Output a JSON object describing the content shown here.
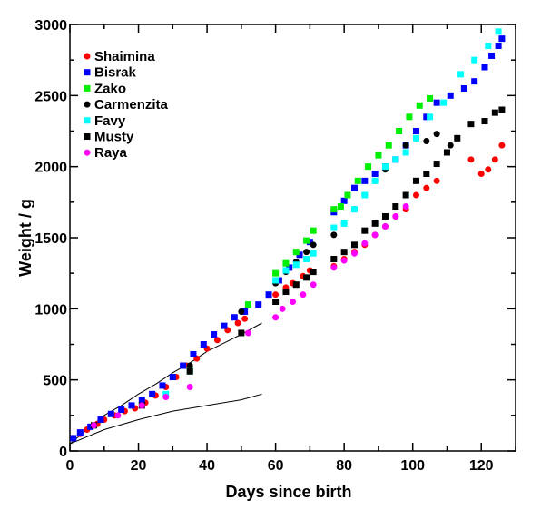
{
  "chart_data": {
    "type": "scatter",
    "xlabel": "Days since birth",
    "ylabel": "Weight / g",
    "xlim": [
      0,
      130
    ],
    "ylim": [
      0,
      3000
    ],
    "xticks": [
      0,
      20,
      40,
      60,
      80,
      100,
      120
    ],
    "yticks": [
      0,
      500,
      1000,
      1500,
      2000,
      2500,
      3000
    ],
    "grid": false,
    "legend_position": "top-left",
    "series": [
      {
        "name": "Shaimina",
        "color": "#ff0000",
        "marker": "circle",
        "x": [
          1,
          3,
          5,
          8,
          10,
          13,
          16,
          19,
          22,
          25,
          28,
          31,
          34,
          37,
          40,
          43,
          46,
          49,
          51,
          60,
          63,
          65,
          68,
          70,
          77,
          80,
          83,
          86,
          89,
          92,
          95,
          98,
          101,
          104,
          107,
          117,
          120,
          122,
          124,
          126
        ],
        "y": [
          90,
          120,
          150,
          190,
          220,
          250,
          280,
          300,
          340,
          390,
          450,
          520,
          600,
          650,
          720,
          780,
          850,
          900,
          930,
          1100,
          1150,
          1180,
          1230,
          1270,
          1300,
          1350,
          1400,
          1450,
          1520,
          1580,
          1650,
          1700,
          1800,
          1850,
          1900,
          2050,
          1950,
          1980,
          2050,
          2150
        ]
      },
      {
        "name": "Bisrak",
        "color": "#0000ff",
        "marker": "square",
        "x": [
          1,
          3,
          6,
          9,
          12,
          15,
          18,
          21,
          24,
          27,
          30,
          33,
          36,
          39,
          42,
          45,
          48,
          51,
          55,
          58,
          61,
          64,
          67,
          70,
          77,
          80,
          83,
          86,
          89,
          92,
          95,
          98,
          101,
          104,
          107,
          111,
          115,
          118,
          121,
          123,
          125,
          126
        ],
        "y": [
          90,
          130,
          170,
          220,
          260,
          290,
          320,
          360,
          400,
          460,
          520,
          600,
          680,
          750,
          820,
          880,
          940,
          980,
          1030,
          1100,
          1200,
          1290,
          1380,
          1470,
          1680,
          1760,
          1850,
          1900,
          1950,
          2000,
          2050,
          2150,
          2250,
          2350,
          2450,
          2500,
          2550,
          2600,
          2700,
          2780,
          2850,
          2900
        ]
      },
      {
        "name": "Zako",
        "color": "#00ee00",
        "marker": "square",
        "x": [
          35,
          52,
          60,
          63,
          66,
          69,
          71,
          77,
          79,
          81,
          84,
          87,
          90,
          93,
          96,
          99,
          102,
          105
        ],
        "y": [
          570,
          1030,
          1250,
          1320,
          1400,
          1480,
          1550,
          1700,
          1720,
          1800,
          1900,
          2000,
          2080,
          2150,
          2250,
          2350,
          2430,
          2480
        ]
      },
      {
        "name": "Carmenzita",
        "color": "#000000",
        "marker": "circle",
        "x": [
          35,
          50,
          60,
          63,
          66,
          69,
          71,
          77,
          80,
          83,
          86,
          89,
          92,
          95,
          98,
          101,
          104,
          107,
          111
        ],
        "y": [
          600,
          980,
          1180,
          1260,
          1330,
          1400,
          1450,
          1520,
          1600,
          1700,
          1800,
          1900,
          1980,
          2050,
          2150,
          2200,
          2180,
          2230,
          2150
        ]
      },
      {
        "name": "Favy",
        "color": "#00ffff",
        "marker": "square",
        "x": [
          28,
          35,
          60,
          63,
          66,
          69,
          71,
          77,
          80,
          83,
          86,
          89,
          92,
          95,
          98,
          101,
          105,
          109,
          114,
          118,
          122,
          125
        ],
        "y": [
          400,
          560,
          1200,
          1270,
          1310,
          1350,
          1390,
          1570,
          1600,
          1700,
          1800,
          1900,
          2000,
          2050,
          2100,
          2200,
          2350,
          2450,
          2650,
          2750,
          2850,
          2950
        ]
      },
      {
        "name": "Musty",
        "color": "#000000",
        "marker": "square",
        "x": [
          7,
          21,
          35,
          50,
          60,
          63,
          66,
          69,
          71,
          77,
          80,
          83,
          86,
          89,
          92,
          95,
          98,
          101,
          104,
          107,
          110,
          113,
          117,
          121,
          124,
          126
        ],
        "y": [
          180,
          320,
          560,
          830,
          1050,
          1120,
          1170,
          1220,
          1260,
          1350,
          1400,
          1450,
          1550,
          1600,
          1650,
          1720,
          1800,
          1900,
          1950,
          2020,
          2100,
          2200,
          2300,
          2320,
          2380,
          2400
        ]
      },
      {
        "name": "Raya",
        "color": "#ff00ff",
        "marker": "circle",
        "x": [
          7,
          14,
          21,
          28,
          35,
          52,
          60,
          62,
          65,
          68,
          71,
          77,
          80,
          83,
          86,
          89,
          92,
          95,
          98
        ],
        "y": [
          180,
          250,
          320,
          380,
          450,
          830,
          940,
          1000,
          1050,
          1100,
          1170,
          1290,
          1340,
          1390,
          1460,
          1520,
          1580,
          1650,
          1720
        ]
      }
    ],
    "reference_lines": [
      {
        "color": "#000000",
        "x": [
          0,
          5,
          10,
          15,
          20,
          25,
          30,
          35,
          40,
          45,
          50,
          56
        ],
        "y": [
          50,
          150,
          250,
          320,
          400,
          470,
          550,
          620,
          700,
          760,
          820,
          900
        ]
      },
      {
        "color": "#000000",
        "x": [
          0,
          10,
          20,
          30,
          40,
          50,
          56
        ],
        "y": [
          50,
          150,
          220,
          280,
          320,
          360,
          400
        ]
      }
    ]
  }
}
